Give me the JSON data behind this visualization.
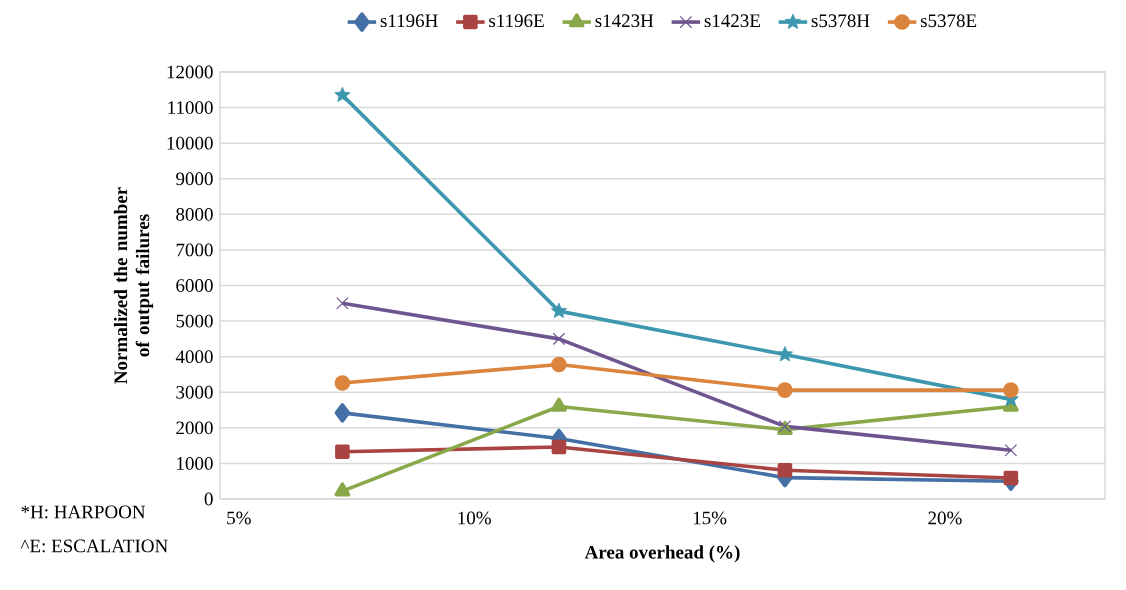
{
  "chart_data": {
    "type": "line",
    "xlabel": "Area overhead (%)",
    "ylabel": "Normalized the number of output failures",
    "x": [
      7.2,
      11.8,
      16.6,
      21.4
    ],
    "xlim": [
      4.6,
      23.4
    ],
    "xticks": [
      {
        "value": 5,
        "label": "5%"
      },
      {
        "value": 10,
        "label": "10%"
      },
      {
        "value": 15,
        "label": "15%"
      },
      {
        "value": 20,
        "label": "20%"
      }
    ],
    "ylim": [
      0,
      12000
    ],
    "yticks": [
      0,
      1000,
      2000,
      3000,
      4000,
      5000,
      6000,
      7000,
      8000,
      9000,
      10000,
      11000,
      12000
    ],
    "grid": "y",
    "legend": "top",
    "line_style": "solid",
    "series": [
      {
        "name": "s1196H",
        "color": "#4470a6",
        "marker": "diamond",
        "values": [
          2420,
          1700,
          600,
          500
        ]
      },
      {
        "name": "s1196E",
        "color": "#a94442",
        "marker": "square",
        "values": [
          1330,
          1460,
          810,
          590
        ]
      },
      {
        "name": "s1423H",
        "color": "#88a84a",
        "marker": "triangle",
        "values": [
          220,
          2600,
          1950,
          2600
        ]
      },
      {
        "name": "s1423E",
        "color": "#6f558f",
        "marker": "cross",
        "values": [
          5500,
          4500,
          2040,
          1370
        ]
      },
      {
        "name": "s5378H",
        "color": "#3d97ae",
        "marker": "star",
        "values": [
          11350,
          5280,
          4060,
          2800
        ]
      },
      {
        "name": "s5378E",
        "color": "#db843d",
        "marker": "circle",
        "values": [
          3260,
          3780,
          3060,
          3060
        ]
      }
    ],
    "annotations": [
      "*H: HARPOON",
      "^E: ESCALATION"
    ]
  }
}
